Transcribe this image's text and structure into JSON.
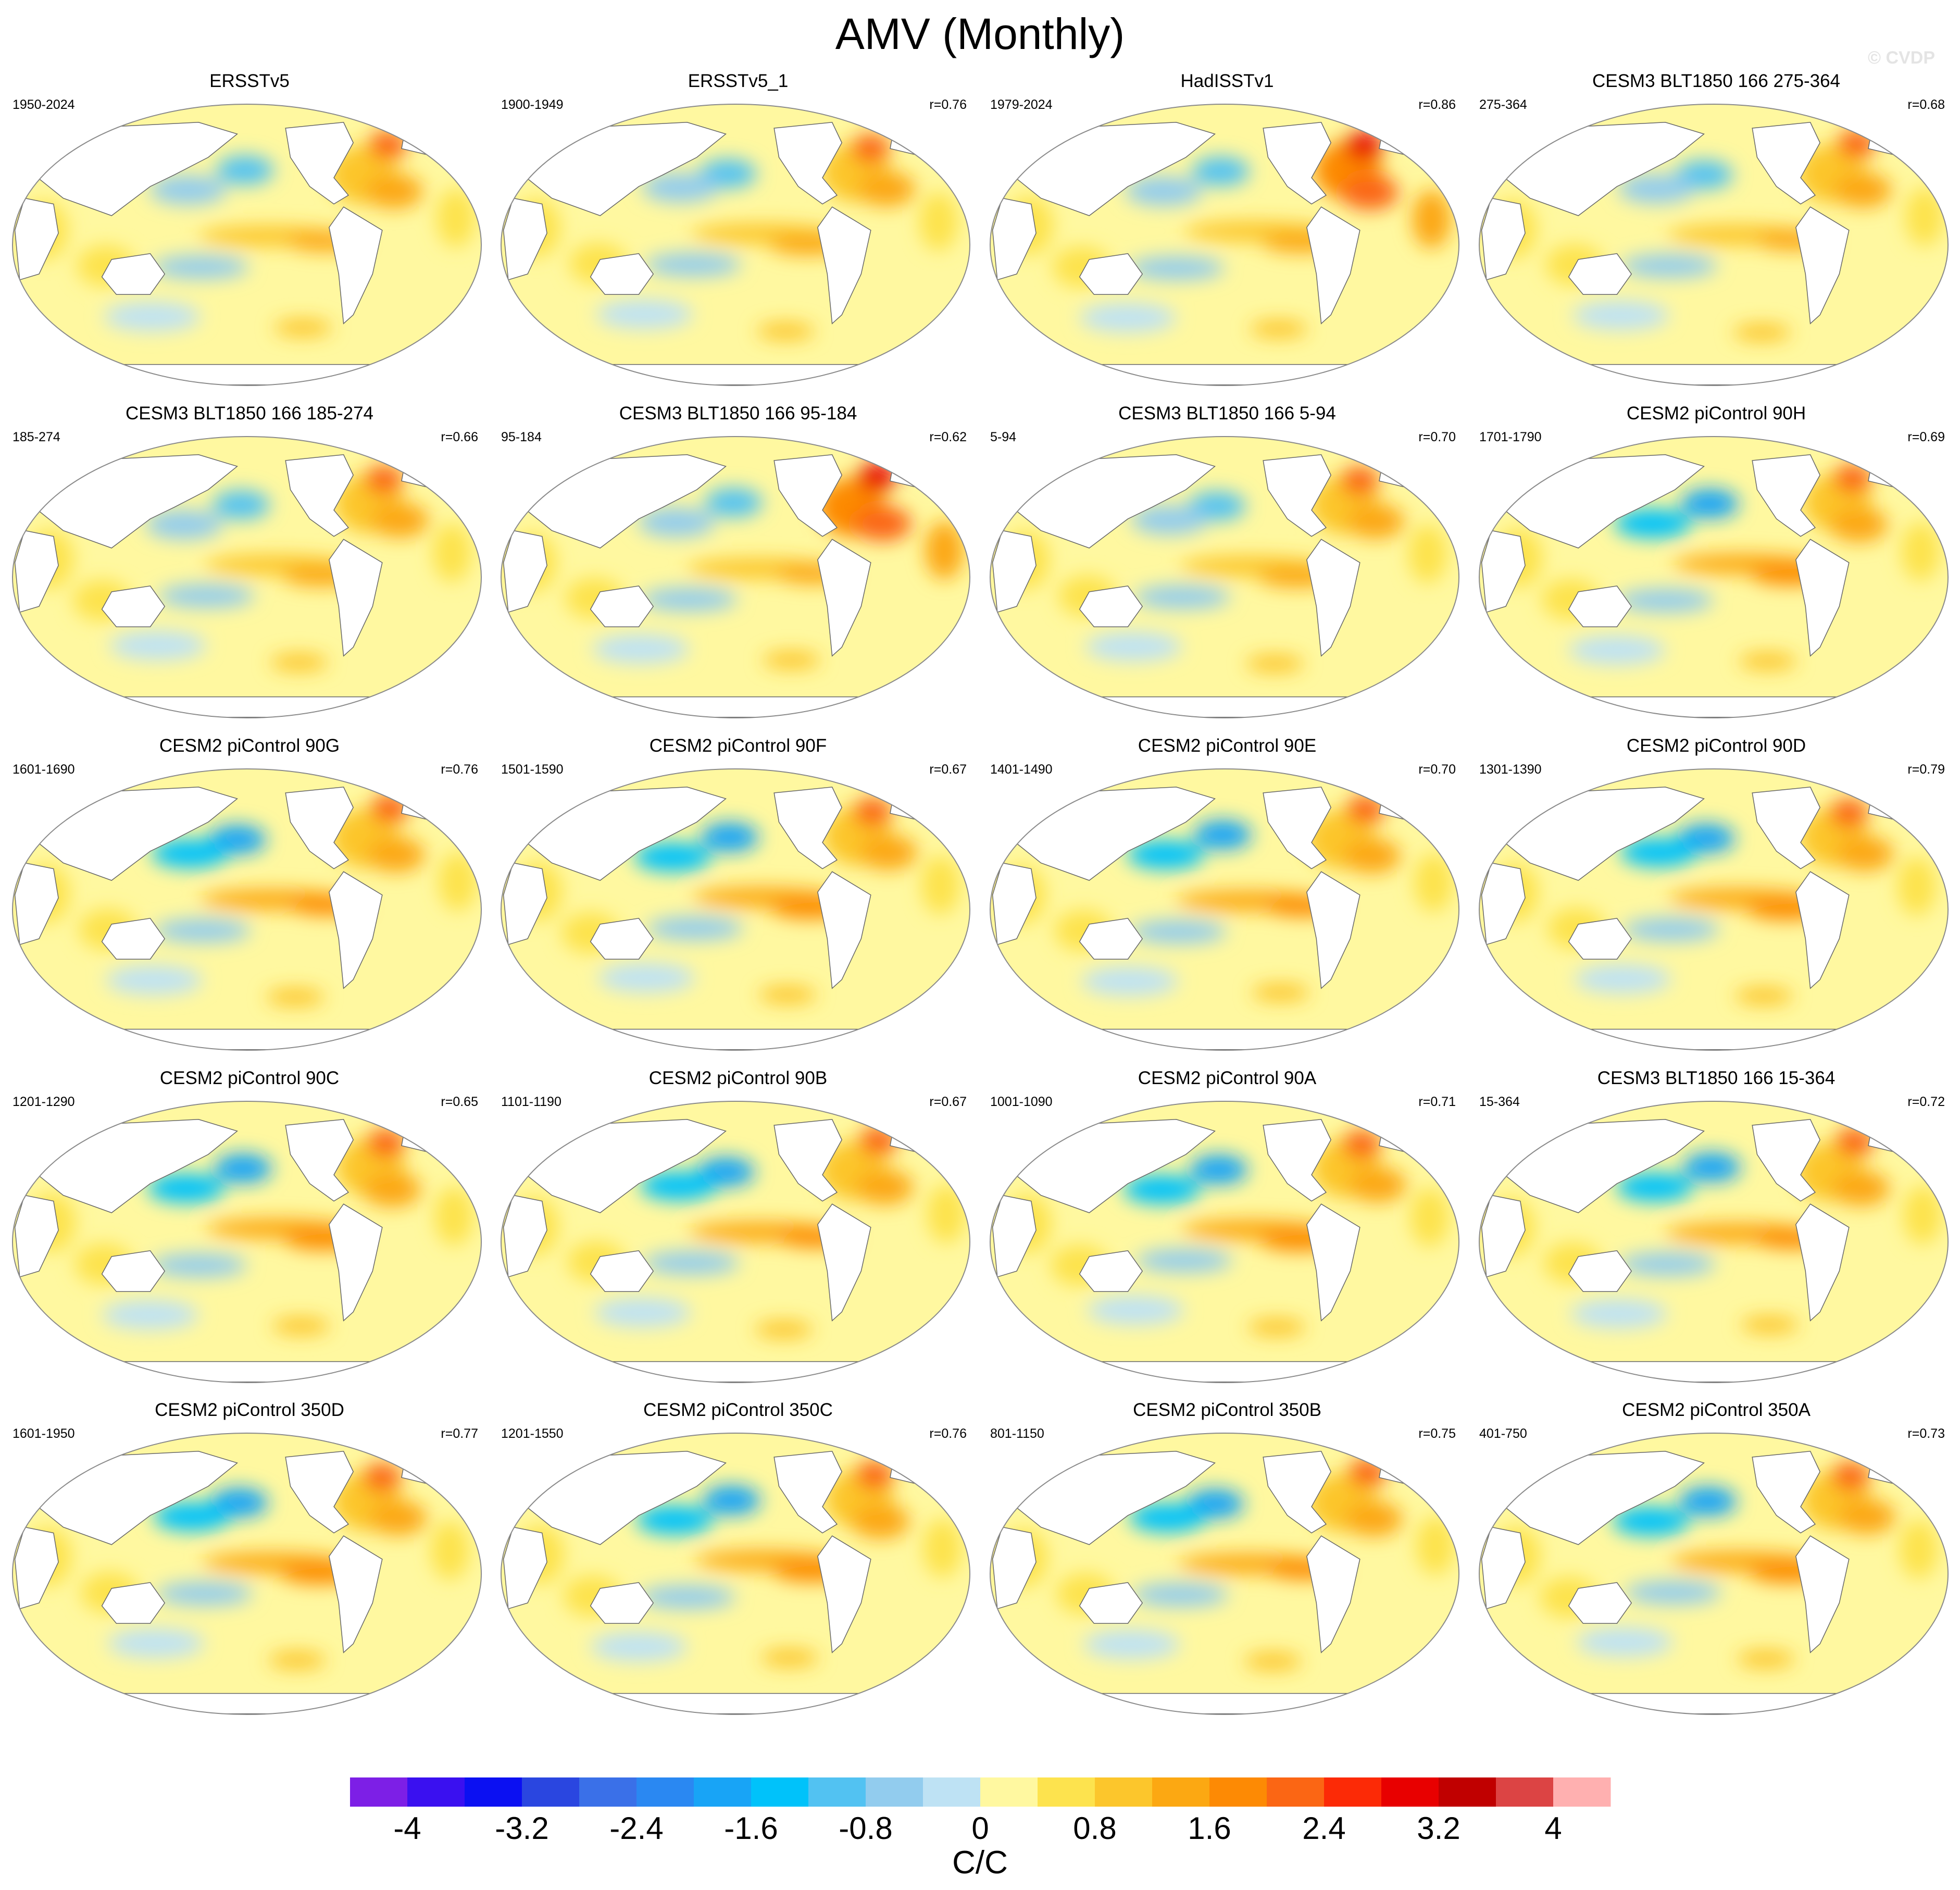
{
  "title": "AMV (Monthly)",
  "watermark": "© CVDP",
  "chart_data": {
    "type": "heatmap",
    "title": "AMV (Monthly)",
    "layout": "5 rows x 4 columns of global SST regression maps (Robinson-like projection)",
    "panels": [
      {
        "name": "ERSSTv5",
        "period": "1950-2024",
        "r": ""
      },
      {
        "name": "ERSSTv5_1",
        "period": "1900-1949",
        "r": "r=0.76"
      },
      {
        "name": "HadISSTv1",
        "period": "1979-2024",
        "r": "r=0.86"
      },
      {
        "name": "CESM3 BLT1850 166 275-364",
        "period": "275-364",
        "r": "r=0.68"
      },
      {
        "name": "CESM3 BLT1850 166 185-274",
        "period": "185-274",
        "r": "r=0.66"
      },
      {
        "name": "CESM3 BLT1850 166 95-184",
        "period": "95-184",
        "r": "r=0.62"
      },
      {
        "name": "CESM3 BLT1850 166 5-94",
        "period": "5-94",
        "r": "r=0.70"
      },
      {
        "name": "CESM2 piControl 90H",
        "period": "1701-1790",
        "r": "r=0.69"
      },
      {
        "name": "CESM2 piControl 90G",
        "period": "1601-1690",
        "r": "r=0.76"
      },
      {
        "name": "CESM2 piControl 90F",
        "period": "1501-1590",
        "r": "r=0.67"
      },
      {
        "name": "CESM2 piControl 90E",
        "period": "1401-1490",
        "r": "r=0.70"
      },
      {
        "name": "CESM2 piControl 90D",
        "period": "1301-1390",
        "r": "r=0.79"
      },
      {
        "name": "CESM2 piControl 90C",
        "period": "1201-1290",
        "r": "r=0.65"
      },
      {
        "name": "CESM2 piControl 90B",
        "period": "1101-1190",
        "r": "r=0.67"
      },
      {
        "name": "CESM2 piControl 90A",
        "period": "1001-1090",
        "r": "r=0.71"
      },
      {
        "name": "CESM3 BLT1850 166 15-364",
        "period": "15-364",
        "r": "r=0.72"
      },
      {
        "name": "CESM2 piControl 350D",
        "period": "1601-1950",
        "r": "r=0.77"
      },
      {
        "name": "CESM2 piControl 350C",
        "period": "1201-1550",
        "r": "r=0.76"
      },
      {
        "name": "CESM2 piControl 350B",
        "period": "801-1150",
        "r": "r=0.75"
      },
      {
        "name": "CESM2 piControl 350A",
        "period": "401-750",
        "r": "r=0.73"
      }
    ],
    "colorbar": {
      "unit": "C/C",
      "range": [
        -4.4,
        4.4
      ],
      "boundaries": [
        -4.4,
        -4.0,
        -3.6,
        -3.2,
        -2.8,
        -2.4,
        -2.0,
        -1.6,
        -1.2,
        -0.8,
        -0.4,
        0,
        0.4,
        0.8,
        1.2,
        1.6,
        2.0,
        2.4,
        2.8,
        3.2,
        3.6,
        4.0,
        4.4
      ],
      "colors": [
        "#7d1fe6",
        "#3a10f0",
        "#0b10f2",
        "#2a46e0",
        "#3a70e8",
        "#2a88f2",
        "#18a4f6",
        "#00c2fa",
        "#52c2f2",
        "#92ccee",
        "#bee2f4",
        "#fff8a0",
        "#fde34e",
        "#fcc62c",
        "#fca812",
        "#fd8a04",
        "#fb6614",
        "#fc2a06",
        "#e80000",
        "#c00000",
        "#dc4444",
        "#ffb0b0"
      ],
      "tick_labels": [
        "-4",
        "-3.2",
        "-2.4",
        "-1.6",
        "-0.8",
        "0",
        "0.8",
        "1.6",
        "2.4",
        "3.2",
        "4"
      ],
      "tick_values": [
        -4.0,
        -3.2,
        -2.4,
        -1.6,
        -0.8,
        0,
        0.8,
        1.6,
        2.4,
        3.2,
        4.0
      ]
    }
  }
}
